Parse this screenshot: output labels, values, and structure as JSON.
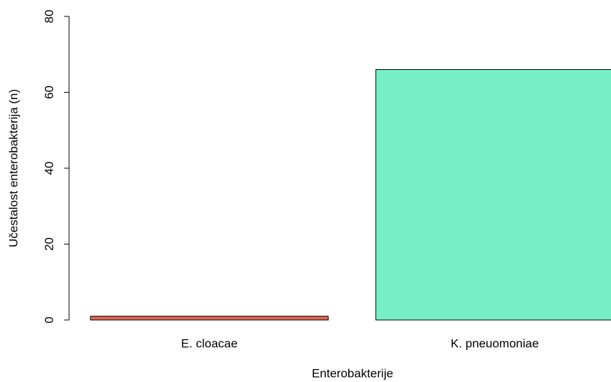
{
  "chart_data": {
    "type": "bar",
    "categories": [
      "E. cloacae",
      "K. pneuomoniae"
    ],
    "values": [
      1,
      66
    ],
    "colors": [
      "#e0664f",
      "#77efc6"
    ],
    "xlabel": "Enterobakterije",
    "ylabel": "Učestalost enterobakterija (n)",
    "ylim": [
      0,
      80
    ],
    "yticks": [
      0,
      20,
      40,
      60,
      80
    ],
    "grid": false
  }
}
